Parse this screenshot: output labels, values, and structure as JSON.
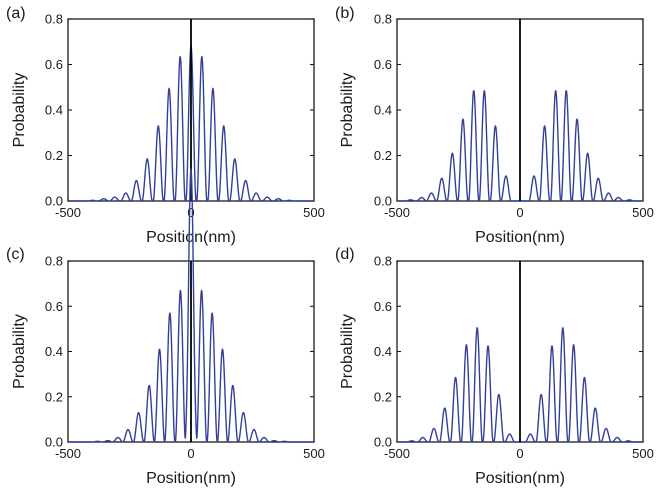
{
  "figure": {
    "colors": {
      "series": "#33409a",
      "axes": "#1a1a1a",
      "center_line": "#000000"
    }
  },
  "chart_data": [
    {
      "type": "line",
      "panel": "(a)",
      "xlabel": "Position(nm)",
      "ylabel": "Probability",
      "xlim": [
        -500,
        500
      ],
      "ylim": [
        0.0,
        0.8
      ],
      "xticks": [
        -500,
        0,
        500
      ],
      "yticks": [
        0.0,
        0.2,
        0.4,
        0.6,
        0.8
      ],
      "xtick_labels": [
        "-500",
        "0",
        "500"
      ],
      "ytick_labels": [
        "0.0",
        "0.2",
        "0.4",
        "0.6",
        "0.8"
      ],
      "vertical_line_x": 0,
      "grid": false,
      "series": [
        {
          "peaks": [
            [
              -400,
              0.003
            ],
            [
              -355,
              0.01
            ],
            [
              -310,
              0.017
            ],
            [
              -265,
              0.035
            ],
            [
              -222,
              0.09
            ],
            [
              -178,
              0.185
            ],
            [
              -133,
              0.33
            ],
            [
              -89,
              0.495
            ],
            [
              -44,
              0.635
            ],
            [
              0,
              0.68
            ],
            [
              44,
              0.635
            ],
            [
              89,
              0.495
            ],
            [
              133,
              0.33
            ],
            [
              178,
              0.185
            ],
            [
              222,
              0.09
            ],
            [
              265,
              0.035
            ],
            [
              310,
              0.017
            ],
            [
              355,
              0.01
            ],
            [
              400,
              0.003
            ]
          ]
        }
      ]
    },
    {
      "type": "line",
      "panel": "(b)",
      "xlabel": "Position(nm)",
      "ylabel": "Probability",
      "xlim": [
        -500,
        500
      ],
      "ylim": [
        0.0,
        0.8
      ],
      "xticks": [
        -500,
        0,
        500
      ],
      "yticks": [
        0.0,
        0.2,
        0.4,
        0.6,
        0.8
      ],
      "xtick_labels": [
        "-500",
        "0",
        "500"
      ],
      "ytick_labels": [
        "0.0",
        "0.2",
        "0.4",
        "0.6",
        "0.8"
      ],
      "vertical_line_x": 0,
      "grid": false,
      "series": [
        {
          "peaks": [
            [
              -445,
              0.005
            ],
            [
              -400,
              0.015
            ],
            [
              -360,
              0.035
            ],
            [
              -318,
              0.1
            ],
            [
              -275,
              0.21
            ],
            [
              -232,
              0.36
            ],
            [
              -188,
              0.485
            ],
            [
              -145,
              0.485
            ],
            [
              -100,
              0.33
            ],
            [
              -57,
              0.11
            ],
            [
              57,
              0.11
            ],
            [
              100,
              0.33
            ],
            [
              145,
              0.485
            ],
            [
              188,
              0.485
            ],
            [
              232,
              0.36
            ],
            [
              275,
              0.21
            ],
            [
              318,
              0.1
            ],
            [
              360,
              0.035
            ],
            [
              400,
              0.015
            ],
            [
              445,
              0.005
            ]
          ]
        }
      ]
    },
    {
      "type": "line",
      "panel": "(c)",
      "xlabel": "Position(nm)",
      "ylabel": "Probability",
      "xlim": [
        -500,
        500
      ],
      "ylim": [
        0.0,
        0.8
      ],
      "xticks": [
        -500,
        0,
        500
      ],
      "yticks": [
        0.0,
        0.2,
        0.4,
        0.6,
        0.8
      ],
      "xtick_labels": [
        "-500",
        "0",
        "500"
      ],
      "ytick_labels": [
        "0.0",
        "0.2",
        "0.4",
        "0.6",
        "0.8"
      ],
      "vertical_line_x": 0,
      "grid": false,
      "series": [
        {
          "peaks": [
            [
              -380,
              0.003
            ],
            [
              -338,
              0.006
            ],
            [
              -297,
              0.02
            ],
            [
              -256,
              0.055
            ],
            [
              -213,
              0.13
            ],
            [
              -170,
              0.25
            ],
            [
              -128,
              0.41
            ],
            [
              -86,
              0.57
            ],
            [
              -43,
              0.67
            ],
            [
              -4,
              0.66
            ],
            [
              4,
              0.66
            ],
            [
              43,
              0.67
            ],
            [
              86,
              0.57
            ],
            [
              128,
              0.41
            ],
            [
              170,
              0.25
            ],
            [
              213,
              0.13
            ],
            [
              256,
              0.055
            ],
            [
              297,
              0.02
            ],
            [
              338,
              0.006
            ],
            [
              380,
              0.003
            ]
          ]
        }
      ]
    },
    {
      "type": "line",
      "panel": "(d)",
      "xlabel": "Position(nm)",
      "ylabel": "Probability",
      "xlim": [
        -500,
        500
      ],
      "ylim": [
        0.0,
        0.8
      ],
      "xticks": [
        -500,
        0,
        500
      ],
      "yticks": [
        0.0,
        0.2,
        0.4,
        0.6,
        0.8
      ],
      "xtick_labels": [
        "-500",
        "0",
        "500"
      ],
      "ytick_labels": [
        "0.0",
        "0.2",
        "0.4",
        "0.6",
        "0.8"
      ],
      "vertical_line_x": 0,
      "grid": false,
      "series": [
        {
          "peaks": [
            [
              -440,
              0.005
            ],
            [
              -395,
              0.02
            ],
            [
              -350,
              0.06
            ],
            [
              -306,
              0.15
            ],
            [
              -262,
              0.285
            ],
            [
              -218,
              0.43
            ],
            [
              -174,
              0.505
            ],
            [
              -130,
              0.425
            ],
            [
              -86,
              0.21
            ],
            [
              -42,
              0.035
            ],
            [
              42,
              0.035
            ],
            [
              86,
              0.21
            ],
            [
              130,
              0.425
            ],
            [
              174,
              0.505
            ],
            [
              218,
              0.43
            ],
            [
              262,
              0.285
            ],
            [
              306,
              0.15
            ],
            [
              350,
              0.06
            ],
            [
              395,
              0.02
            ],
            [
              440,
              0.005
            ]
          ]
        }
      ]
    }
  ]
}
